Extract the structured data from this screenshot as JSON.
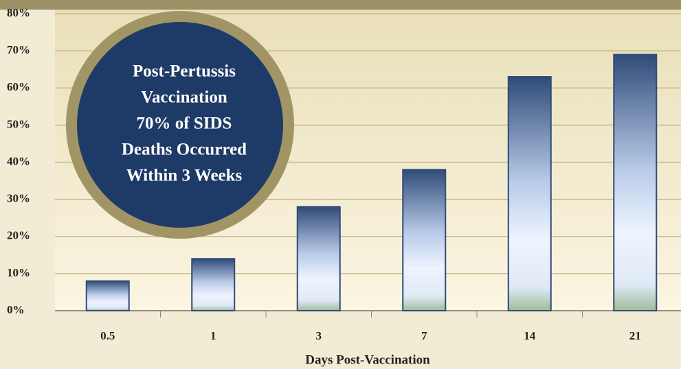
{
  "chart_data": {
    "type": "bar",
    "x_label": "Days Post-Vaccination",
    "annotation": [
      "Post-Pertussis",
      "Vaccination",
      "70% of SIDS",
      "Deaths Occurred",
      "Within 3 Weeks"
    ],
    "categories": [
      "0.5",
      "1",
      "3",
      "7",
      "14",
      "21"
    ],
    "values": [
      8,
      14,
      28,
      38,
      63,
      69
    ],
    "color": "#2f4b78",
    "ylim": [
      0,
      80
    ],
    "yticks": [
      {
        "value": 0,
        "label": "0%"
      },
      {
        "value": 10,
        "label": "10%"
      },
      {
        "value": 20,
        "label": "20%"
      },
      {
        "value": 30,
        "label": "30%"
      },
      {
        "value": 40,
        "label": "40%"
      },
      {
        "value": 50,
        "label": "50%"
      },
      {
        "value": 60,
        "label": "60%"
      },
      {
        "value": 70,
        "label": "70%"
      },
      {
        "value": 80,
        "label": "80%"
      }
    ],
    "grid": true
  }
}
